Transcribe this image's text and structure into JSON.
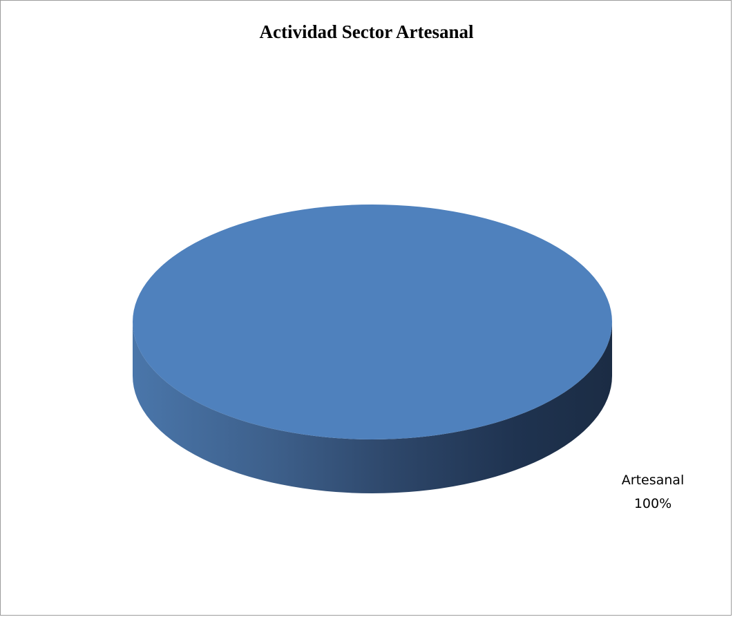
{
  "chart_data": {
    "type": "pie",
    "title": "Actividad Sector Artesanal",
    "style": "3d",
    "slices": [
      {
        "label": "Artesanal",
        "value": 100,
        "percent_label": "100%",
        "color": "#4f81bd"
      }
    ],
    "legend": "none"
  }
}
